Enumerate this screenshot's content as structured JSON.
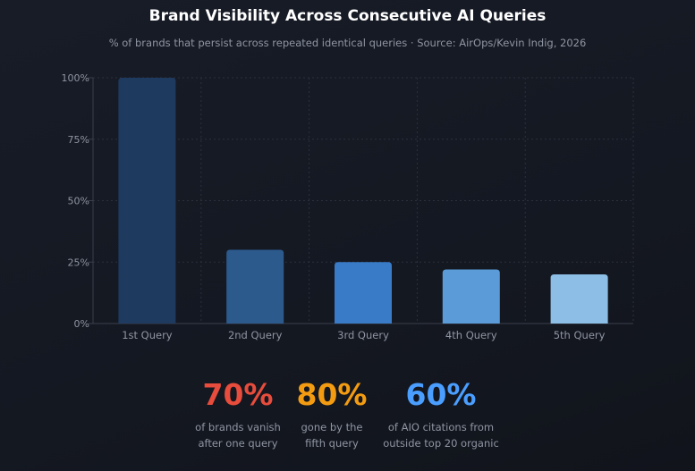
{
  "title": "Brand Visibility Across Consecutive AI Queries",
  "subtitle": "% of brands that persist across repeated identical queries · Source: AirOps/Kevin Indig, 2026",
  "chart_data": {
    "type": "bar",
    "categories": [
      "1st Query",
      "2nd Query",
      "3rd Query",
      "4th Query",
      "5th Query"
    ],
    "values": [
      100,
      30,
      25,
      22,
      20
    ],
    "bar_colors": [
      "#1f3a5f",
      "#2c5a8d",
      "#3a7bc8",
      "#5a9bd8",
      "#8dbfe6"
    ],
    "yticks": [
      "0%",
      "25%",
      "50%",
      "75%",
      "100%"
    ],
    "ylim": [
      0,
      100
    ],
    "grid": true,
    "xlabel": "",
    "ylabel": ""
  },
  "stats": [
    {
      "value": "70%",
      "line1": "of brands vanish",
      "line2": "after one query",
      "color": "#e74c3c"
    },
    {
      "value": "80%",
      "line1": "gone by the",
      "line2": "fifth query",
      "color": "#f39c12"
    },
    {
      "value": "60%",
      "line1": "of AIO citations from",
      "line2": "outside top 20 organic",
      "color": "#4a9eff"
    }
  ]
}
